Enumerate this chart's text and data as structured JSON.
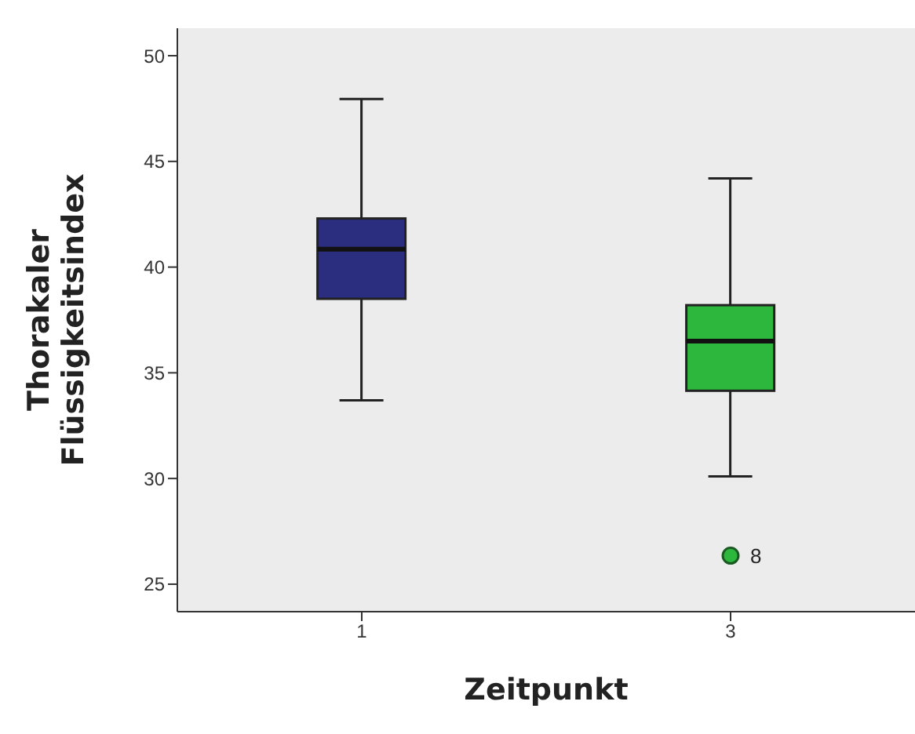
{
  "chart_data": {
    "type": "box",
    "xlabel": "Zeitpunkt",
    "ylabel": "Thorakaler Flüssigkeitsindex",
    "categories": [
      "1",
      "3"
    ],
    "boxes": [
      {
        "low": 33.7,
        "q1": 38.5,
        "median": 40.85,
        "q3": 42.3,
        "high": 47.95
      },
      {
        "low": 30.1,
        "q1": 34.15,
        "median": 36.5,
        "q3": 38.2,
        "high": 44.2,
        "outliers": [
          26.35
        ]
      }
    ],
    "colors": [
      "#2b2d7e",
      "#2db83d"
    ],
    "ylim": [
      23.7,
      51.3
    ],
    "yticks": [
      25,
      30,
      35,
      40,
      45,
      50
    ],
    "annotations": [
      "8"
    ]
  }
}
